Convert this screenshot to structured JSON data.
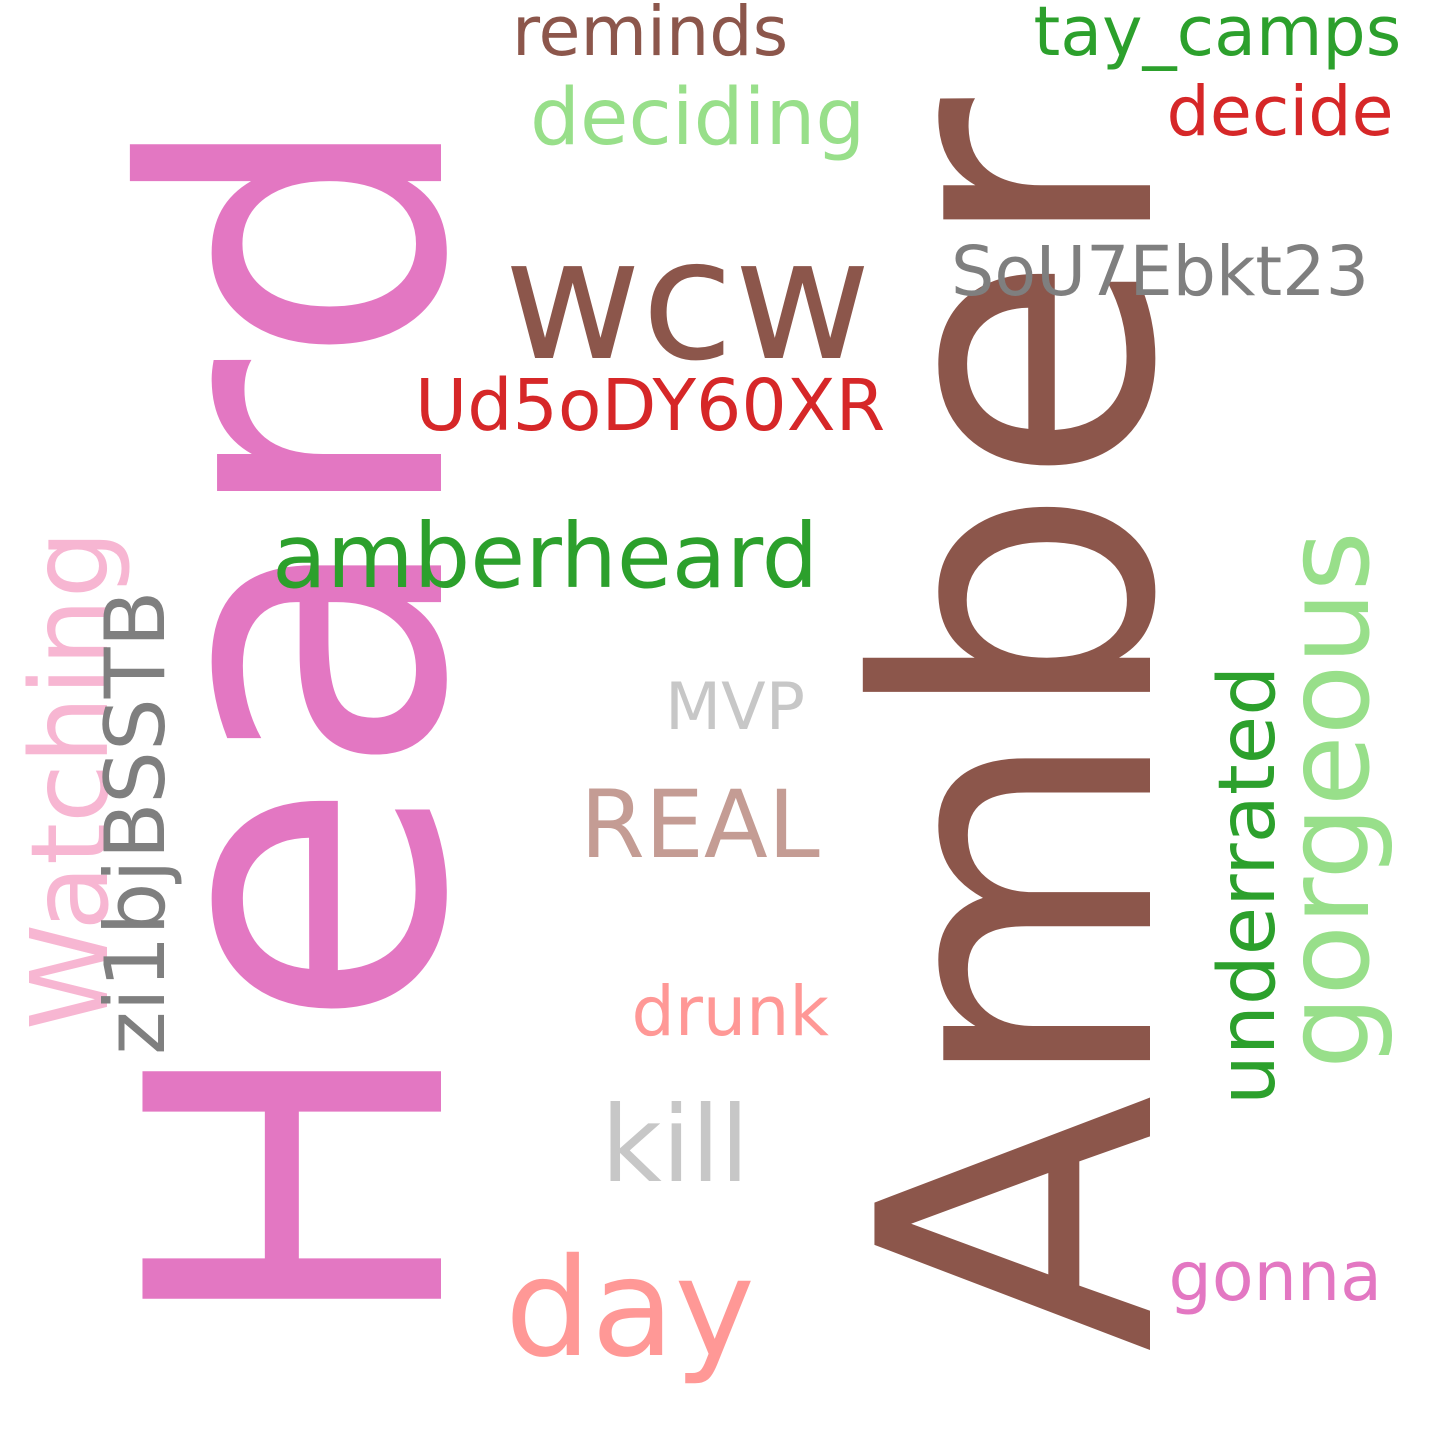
{
  "words": [
    {
      "id": "amber",
      "text": "Amber",
      "color": "#8c564b",
      "rotated": true
    },
    {
      "id": "heard",
      "text": "Heard",
      "color": "#e377c2",
      "rotated": true
    },
    {
      "id": "wcw",
      "text": "wcw",
      "color": "#8c564b",
      "rotated": false
    },
    {
      "id": "amberheard",
      "text": "amberheard",
      "color": "#2ca02c",
      "rotated": false
    },
    {
      "id": "gorgeous",
      "text": "gorgeous",
      "color": "#98df8a",
      "rotated": true
    },
    {
      "id": "kill",
      "text": "kill",
      "color": "#c7c7c7",
      "rotated": false
    },
    {
      "id": "day",
      "text": "day",
      "color": "#ff9896",
      "rotated": false
    },
    {
      "id": "real",
      "text": "REAL",
      "color": "#c49c94",
      "rotated": false
    },
    {
      "id": "watching",
      "text": "Watching",
      "color": "#f7b6d2",
      "rotated": true
    },
    {
      "id": "zi1bjbsstb",
      "text": "zi1bjBSSTB",
      "color": "#7f7f7f",
      "rotated": true
    },
    {
      "id": "ud5ody60xr",
      "text": "Ud5oDY60XR",
      "color": "#d62728",
      "rotated": false
    },
    {
      "id": "sou7ebkt23",
      "text": "SoU7Ebkt23",
      "color": "#7f7f7f",
      "rotated": false
    },
    {
      "id": "underrated",
      "text": "underrated",
      "color": "#2ca02c",
      "rotated": true
    },
    {
      "id": "deciding",
      "text": "deciding",
      "color": "#98df8a",
      "rotated": false
    },
    {
      "id": "tay-camps",
      "text": "tay_camps",
      "color": "#2ca02c",
      "rotated": false
    },
    {
      "id": "reminds",
      "text": "reminds",
      "color": "#8c564b",
      "rotated": false
    },
    {
      "id": "decide",
      "text": "decide",
      "color": "#d62728",
      "rotated": false
    },
    {
      "id": "drunk",
      "text": "drunk",
      "color": "#ff9896",
      "rotated": false
    },
    {
      "id": "mvp",
      "text": "MVP",
      "color": "#c7c7c7",
      "rotated": false
    },
    {
      "id": "gonna",
      "text": "gonna",
      "color": "#e377c2",
      "rotated": false
    }
  ]
}
